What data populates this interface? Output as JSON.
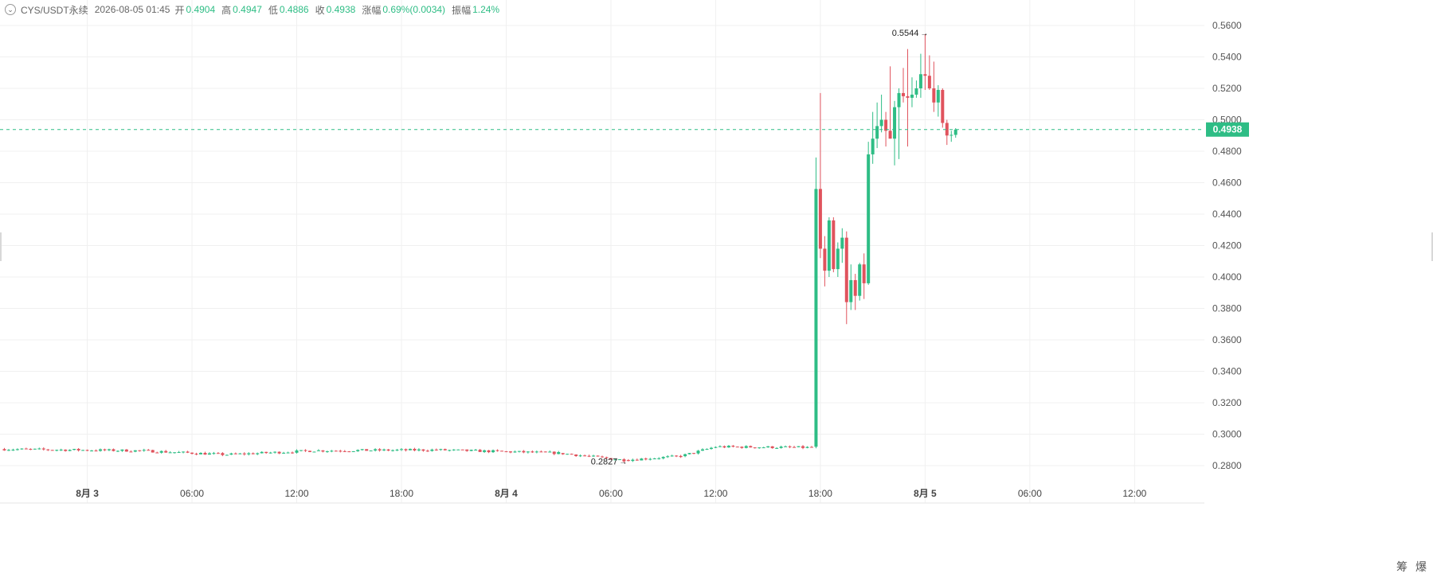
{
  "header": {
    "symbol": "CYS/USDT永续",
    "datetime": "2026-08-05 01:45",
    "open_label": "开",
    "open": "0.4904",
    "high_label": "高",
    "high": "0.4947",
    "low_label": "低",
    "low": "0.4886",
    "close_label": "收",
    "close": "0.4938",
    "change_label": "涨幅",
    "change": "0.69%(0.0034)",
    "amplitude_label": "振幅",
    "amplitude": "1.24%"
  },
  "colors": {
    "up": "#2ebd85",
    "down": "#e0535d",
    "grid": "#f0f0f0",
    "axis_text": "#555555",
    "price_line": "#2ebd85"
  },
  "bottom_buttons": [
    "筹",
    "爆"
  ],
  "chart_data": {
    "type": "candlestick",
    "title": "CYS/USDT永续",
    "interval_minutes": 15,
    "ylim": [
      0.27,
      0.565
    ],
    "y_ticks": [
      "0.5600",
      "0.5400",
      "0.5200",
      "0.5000",
      "0.4800",
      "0.4600",
      "0.4400",
      "0.4200",
      "0.4000",
      "0.3800",
      "0.3600",
      "0.3400",
      "0.3200",
      "0.3000",
      "0.2800"
    ],
    "x_ticks": [
      {
        "label": "8月 3",
        "time": "2026-08-03 00:00",
        "bold": true
      },
      {
        "label": "06:00",
        "time": "2026-08-03 06:00"
      },
      {
        "label": "12:00",
        "time": "2026-08-03 12:00"
      },
      {
        "label": "18:00",
        "time": "2026-08-03 18:00"
      },
      {
        "label": "8月 4",
        "time": "2026-08-04 00:00",
        "bold": true
      },
      {
        "label": "06:00",
        "time": "2026-08-04 06:00"
      },
      {
        "label": "12:00",
        "time": "2026-08-04 12:00"
      },
      {
        "label": "18:00",
        "time": "2026-08-04 18:00"
      },
      {
        "label": "8月 5",
        "time": "2026-08-05 00:00",
        "bold": true
      },
      {
        "label": "06:00",
        "time": "2026-08-05 06:00"
      },
      {
        "label": "12:00",
        "time": "2026-08-05 12:00"
      }
    ],
    "visible_time_range": [
      "2026-08-02 19:00",
      "2026-08-05 16:00"
    ],
    "last_price": "0.4938",
    "annotations": [
      {
        "label": "0.5544",
        "value": 0.5544,
        "time": "2026-08-05 00:00",
        "kind": "high"
      },
      {
        "label": "0.2827",
        "value": 0.2827,
        "time": "2026-08-04 06:45",
        "kind": "low"
      }
    ],
    "candle_anchors": [
      {
        "time": "2026-08-02 19:00",
        "close": 0.2905
      },
      {
        "time": "2026-08-03 03:00",
        "close": 0.2895
      },
      {
        "time": "2026-08-03 08:00",
        "close": 0.287
      },
      {
        "time": "2026-08-03 13:00",
        "close": 0.2895
      },
      {
        "time": "2026-08-03 20:00",
        "close": 0.29
      },
      {
        "time": "2026-08-04 03:00",
        "close": 0.288
      },
      {
        "time": "2026-08-04 06:45",
        "close": 0.2835
      },
      {
        "time": "2026-08-04 10:00",
        "close": 0.286
      },
      {
        "time": "2026-08-04 12:00",
        "close": 0.292
      },
      {
        "time": "2026-08-04 17:30",
        "close": 0.2915
      }
    ],
    "candles_late": [
      {
        "time": "2026-08-04 17:45",
        "open": 0.292,
        "high": 0.476,
        "low": 0.291,
        "close": 0.456
      },
      {
        "time": "2026-08-04 18:00",
        "open": 0.456,
        "high": 0.517,
        "low": 0.412,
        "close": 0.418
      },
      {
        "time": "2026-08-04 18:15",
        "open": 0.418,
        "high": 0.426,
        "low": 0.394,
        "close": 0.404
      },
      {
        "time": "2026-08-04 18:30",
        "open": 0.404,
        "high": 0.438,
        "low": 0.4,
        "close": 0.436
      },
      {
        "time": "2026-08-04 18:45",
        "open": 0.436,
        "high": 0.438,
        "low": 0.403,
        "close": 0.405
      },
      {
        "time": "2026-08-04 19:00",
        "open": 0.405,
        "high": 0.422,
        "low": 0.4,
        "close": 0.418
      },
      {
        "time": "2026-08-04 19:15",
        "open": 0.418,
        "high": 0.431,
        "low": 0.409,
        "close": 0.425
      },
      {
        "time": "2026-08-04 19:30",
        "open": 0.425,
        "high": 0.429,
        "low": 0.37,
        "close": 0.384
      },
      {
        "time": "2026-08-04 19:45",
        "open": 0.384,
        "high": 0.408,
        "low": 0.379,
        "close": 0.398
      },
      {
        "time": "2026-08-04 20:00",
        "open": 0.398,
        "high": 0.402,
        "low": 0.379,
        "close": 0.388
      },
      {
        "time": "2026-08-04 20:15",
        "open": 0.388,
        "high": 0.409,
        "low": 0.385,
        "close": 0.408
      },
      {
        "time": "2026-08-04 20:30",
        "open": 0.408,
        "high": 0.415,
        "low": 0.386,
        "close": 0.396
      },
      {
        "time": "2026-08-04 20:45",
        "open": 0.396,
        "high": 0.486,
        "low": 0.395,
        "close": 0.478
      },
      {
        "time": "2026-08-04 21:00",
        "open": 0.478,
        "high": 0.505,
        "low": 0.472,
        "close": 0.488
      },
      {
        "time": "2026-08-04 21:15",
        "open": 0.488,
        "high": 0.511,
        "low": 0.482,
        "close": 0.496
      },
      {
        "time": "2026-08-04 21:30",
        "open": 0.496,
        "high": 0.516,
        "low": 0.492,
        "close": 0.5
      },
      {
        "time": "2026-08-04 21:45",
        "open": 0.5,
        "high": 0.505,
        "low": 0.483,
        "close": 0.493
      },
      {
        "time": "2026-08-04 22:00",
        "open": 0.493,
        "high": 0.534,
        "low": 0.488,
        "close": 0.488
      },
      {
        "time": "2026-08-04 22:15",
        "open": 0.488,
        "high": 0.512,
        "low": 0.471,
        "close": 0.508
      },
      {
        "time": "2026-08-04 22:30",
        "open": 0.508,
        "high": 0.52,
        "low": 0.475,
        "close": 0.517
      },
      {
        "time": "2026-08-04 22:45",
        "open": 0.517,
        "high": 0.533,
        "low": 0.511,
        "close": 0.515
      },
      {
        "time": "2026-08-04 23:00",
        "open": 0.515,
        "high": 0.545,
        "low": 0.483,
        "close": 0.514
      },
      {
        "time": "2026-08-04 23:15",
        "open": 0.514,
        "high": 0.527,
        "low": 0.508,
        "close": 0.516
      },
      {
        "time": "2026-08-04 23:30",
        "open": 0.516,
        "high": 0.525,
        "low": 0.514,
        "close": 0.52
      },
      {
        "time": "2026-08-04 23:45",
        "open": 0.52,
        "high": 0.542,
        "low": 0.514,
        "close": 0.529
      },
      {
        "time": "2026-08-05 00:00",
        "open": 0.529,
        "high": 0.5544,
        "low": 0.519,
        "close": 0.528
      },
      {
        "time": "2026-08-05 00:15",
        "open": 0.528,
        "high": 0.541,
        "low": 0.519,
        "close": 0.52
      },
      {
        "time": "2026-08-05 00:30",
        "open": 0.52,
        "high": 0.537,
        "low": 0.505,
        "close": 0.511
      },
      {
        "time": "2026-08-05 00:45",
        "open": 0.511,
        "high": 0.522,
        "low": 0.502,
        "close": 0.519
      },
      {
        "time": "2026-08-05 01:00",
        "open": 0.519,
        "high": 0.52,
        "low": 0.495,
        "close": 0.498
      },
      {
        "time": "2026-08-05 01:15",
        "open": 0.498,
        "high": 0.5,
        "low": 0.484,
        "close": 0.49
      },
      {
        "time": "2026-08-05 01:30",
        "open": 0.49,
        "high": 0.493,
        "low": 0.486,
        "close": 0.4904
      },
      {
        "time": "2026-08-05 01:45",
        "open": 0.4904,
        "high": 0.4947,
        "low": 0.4886,
        "close": 0.4938
      }
    ]
  }
}
